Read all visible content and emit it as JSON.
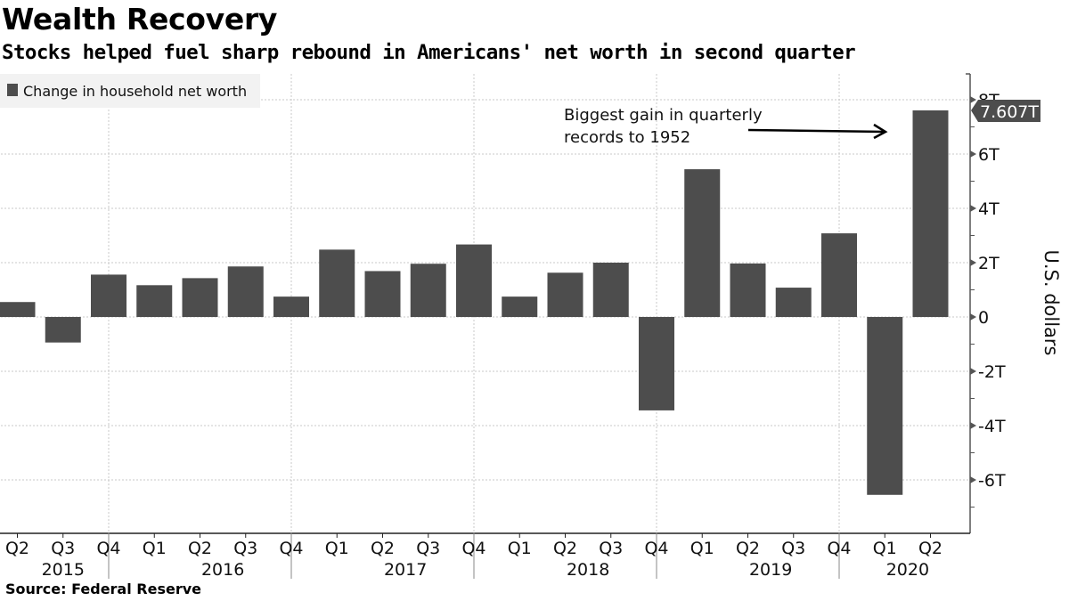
{
  "header": {
    "title": "Wealth Recovery",
    "subtitle": "Stocks helped fuel sharp rebound in Americans' net worth in second quarter"
  },
  "footer": {
    "source": "Source: Federal Reserve"
  },
  "colors": {
    "bar": "#4d4d4d",
    "grid": "#c8c8c8",
    "axis": "#555555",
    "legend_bg": "#f2f2f2",
    "pill_bg": "#4d4d4d"
  },
  "chart_data": {
    "type": "bar",
    "title": "Wealth Recovery",
    "subtitle": "Stocks helped fuel sharp rebound in Americans' net worth in second quarter",
    "xlabel": "",
    "ylabel": "U.S. dollars",
    "y_unit_suffix": "T",
    "ylim": [
      -7.5,
      8.0
    ],
    "yticks": [
      {
        "value": 8,
        "label": "8T"
      },
      {
        "value": 6,
        "label": "6T"
      },
      {
        "value": 4,
        "label": "4T"
      },
      {
        "value": 2,
        "label": "2T"
      },
      {
        "value": 0,
        "label": "0"
      },
      {
        "value": -2,
        "label": "-2T"
      },
      {
        "value": -4,
        "label": "-4T"
      },
      {
        "value": -6,
        "label": "-6T"
      }
    ],
    "y_axis_side": "right",
    "grid": true,
    "legend": {
      "placement": "top-left",
      "entries": [
        "Change in household net worth"
      ]
    },
    "categories": [
      "Q2",
      "Q3",
      "Q4",
      "Q1",
      "Q2",
      "Q3",
      "Q4",
      "Q1",
      "Q2",
      "Q3",
      "Q4",
      "Q1",
      "Q2",
      "Q3",
      "Q4",
      "Q1",
      "Q2",
      "Q3",
      "Q4",
      "Q1",
      "Q2"
    ],
    "years": [
      {
        "label": "2015",
        "start": 0,
        "end": 2
      },
      {
        "label": "2016",
        "start": 3,
        "end": 6
      },
      {
        "label": "2017",
        "start": 7,
        "end": 10
      },
      {
        "label": "2018",
        "start": 11,
        "end": 14
      },
      {
        "label": "2019",
        "start": 15,
        "end": 18
      },
      {
        "label": "2020",
        "start": 19,
        "end": 20
      }
    ],
    "series": [
      {
        "name": "Change in household net worth",
        "values": [
          0.55,
          -0.94,
          1.56,
          1.17,
          1.43,
          1.86,
          0.75,
          2.48,
          1.69,
          1.96,
          2.67,
          0.75,
          1.63,
          2.0,
          -3.44,
          5.44,
          1.97,
          1.08,
          3.08,
          -6.55,
          7.607
        ]
      }
    ],
    "last_value_label": "7.607T",
    "annotations": [
      {
        "text_lines": [
          "Biggest gain in quarterly",
          "records to 1952"
        ],
        "points_to": "2020 Q2",
        "arrow": true
      }
    ]
  }
}
